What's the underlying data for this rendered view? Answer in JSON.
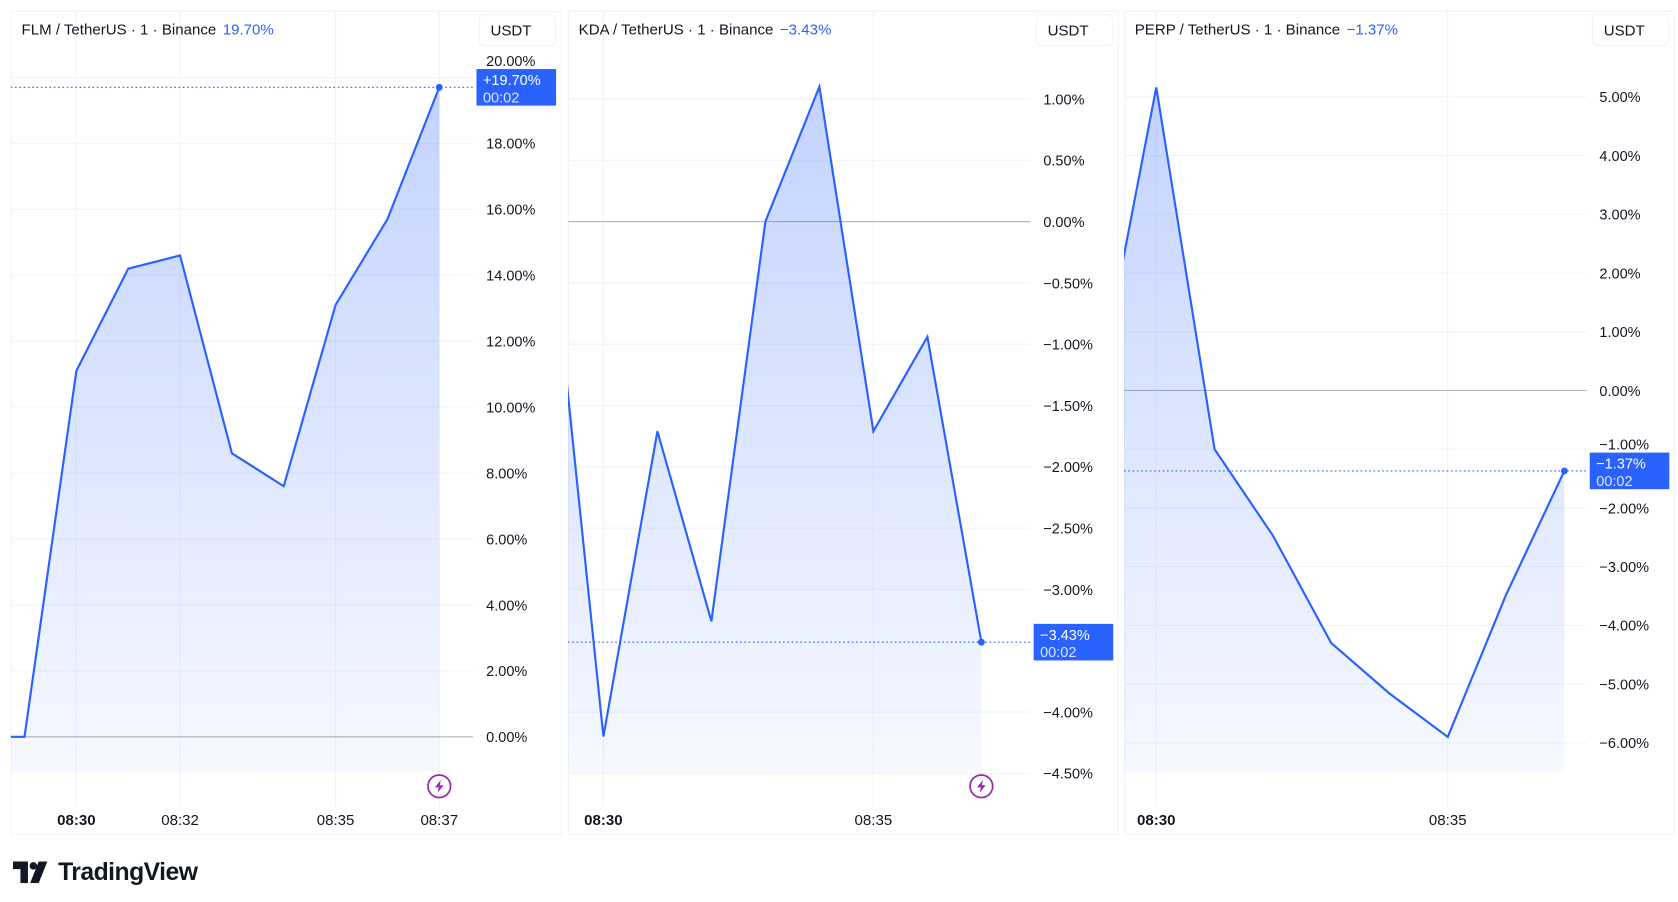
{
  "brand": "TradingView",
  "colors": {
    "line": "#2962ff",
    "label_bg": "#2962ff",
    "change_text": "#2962ff",
    "live_icon": "#9c27b0",
    "zero_line": "#b2b5be"
  },
  "charts": [
    {
      "symbol": "FLM / TetherUS · 1 · Binance",
      "change": "19.70%",
      "currency": "USDT",
      "last_label": "+19.70%",
      "countdown": "00:02",
      "live_icon": "lightning-icon",
      "chart_data": {
        "type": "area",
        "x": [
          "08:28",
          "08:29",
          "08:30",
          "08:31",
          "08:32",
          "08:33",
          "08:34",
          "08:35",
          "08:36",
          "08:37"
        ],
        "values": [
          0,
          0,
          11.1,
          14.2,
          14.6,
          8.6,
          7.6,
          13.1,
          15.7,
          19.7
        ],
        "y_ticks": [
          "20.00%",
          "18.00%",
          "16.00%",
          "14.00%",
          "12.00%",
          "10.00%",
          "8.00%",
          "6.00%",
          "4.00%",
          "2.00%",
          "0.00%"
        ],
        "y_tick_values": [
          20,
          18,
          16,
          14,
          12,
          10,
          8,
          6,
          4,
          2,
          0
        ],
        "x_ticks": [
          "08:30",
          "08:32",
          "08:35",
          "08:37"
        ],
        "x_tick_bold": [
          "08:30"
        ],
        "grid": true
      }
    },
    {
      "symbol": "KDA / TetherUS · 1 · Binance",
      "change": "−3.43%",
      "currency": "USDT",
      "last_label": "−3.43%",
      "countdown": "00:02",
      "live_icon": "lightning-icon",
      "chart_data": {
        "type": "area",
        "x": [
          "08:29",
          "08:30",
          "08:31",
          "08:32",
          "08:33",
          "08:34",
          "08:35",
          "08:36",
          "08:37"
        ],
        "values": [
          0.05,
          -4.2,
          -1.71,
          -3.26,
          0.0,
          1.1,
          -1.71,
          -0.94,
          -3.43
        ],
        "y_ticks": [
          "1.00%",
          "0.50%",
          "0.00%",
          "−0.50%",
          "−1.00%",
          "−1.50%",
          "−2.00%",
          "−2.50%",
          "−3.00%",
          "−4.00%",
          "−4.50%"
        ],
        "y_tick_values": [
          1,
          0.5,
          0,
          -0.5,
          -1,
          -1.5,
          -2,
          -2.5,
          -3,
          -4,
          -4.5
        ],
        "x_ticks": [
          "08:30",
          "08:35"
        ],
        "x_tick_bold": [
          "08:30"
        ],
        "grid": true
      }
    },
    {
      "symbol": "PERP / TetherUS · 1 · Binance",
      "change": "−1.37%",
      "currency": "USDT",
      "last_label": "−1.37%",
      "countdown": "00:02",
      "live_icon": "",
      "chart_data": {
        "type": "area",
        "x": [
          "08:29",
          "08:30",
          "08:31",
          "08:32",
          "08:33",
          "08:34",
          "08:35",
          "08:36",
          "08:37"
        ],
        "values": [
          0,
          5.16,
          -1.0,
          -2.47,
          -4.3,
          -5.16,
          -5.9,
          -3.48,
          -1.37
        ],
        "y_ticks": [
          "5.00%",
          "4.00%",
          "3.00%",
          "2.00%",
          "1.00%",
          "0.00%",
          "−1.00%",
          "−2.00%",
          "−3.00%",
          "−4.00%",
          "−5.00%",
          "−6.00%"
        ],
        "y_tick_values": [
          5,
          4,
          3,
          2,
          1,
          0,
          -1,
          -2,
          -3,
          -4,
          -5,
          -6
        ],
        "x_ticks": [
          "08:30",
          "08:35"
        ],
        "x_tick_bold": [
          "08:30"
        ],
        "grid": true
      }
    }
  ]
}
